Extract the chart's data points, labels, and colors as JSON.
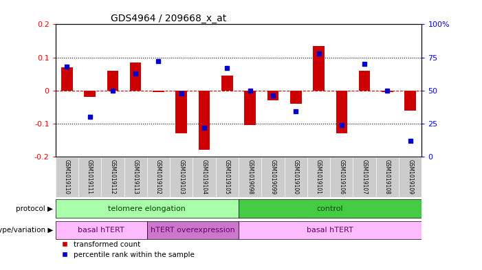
{
  "title": "GDS4964 / 209668_x_at",
  "samples": [
    "GSM1019110",
    "GSM1019111",
    "GSM1019112",
    "GSM1019113",
    "GSM1019102",
    "GSM1019103",
    "GSM1019104",
    "GSM1019105",
    "GSM1019098",
    "GSM1019099",
    "GSM1019100",
    "GSM1019101",
    "GSM1019106",
    "GSM1019107",
    "GSM1019108",
    "GSM1019109"
  ],
  "bar_values": [
    0.07,
    -0.02,
    0.06,
    0.085,
    -0.005,
    -0.13,
    -0.18,
    0.045,
    -0.105,
    -0.03,
    -0.04,
    0.135,
    -0.13,
    0.06,
    -0.005,
    -0.06
  ],
  "dot_percentile": [
    68,
    30,
    50,
    63,
    72,
    48,
    22,
    67,
    50,
    46,
    34,
    78,
    24,
    70,
    50,
    12
  ],
  "ylim_left": [
    -0.2,
    0.2
  ],
  "ylim_right": [
    0,
    100
  ],
  "yticks_left": [
    -0.2,
    -0.1,
    0.0,
    0.1,
    0.2
  ],
  "yticks_right": [
    0,
    25,
    50,
    75,
    100
  ],
  "ytick_labels_right": [
    "0",
    "25",
    "50",
    "75",
    "100%"
  ],
  "bar_color": "#cc0000",
  "dot_color": "#0000cc",
  "hline_color": "#cc0000",
  "grid_color": "#000000",
  "protocol_labels": [
    "telomere elongation",
    "control"
  ],
  "protocol_colors": [
    "#aaffaa",
    "#44cc44"
  ],
  "genotype_labels": [
    "basal hTERT",
    "hTERT overexpression",
    "basal hTERT"
  ],
  "genotype_colors": [
    "#ffbbff",
    "#cc77cc",
    "#ffbbff"
  ],
  "legend_transformed": "transformed count",
  "legend_percentile": "percentile rank within the sample",
  "protocol_text": "protocol",
  "genotype_text": "genotype/variation",
  "label_bg": "#cccccc",
  "bg_color": "#ffffff"
}
